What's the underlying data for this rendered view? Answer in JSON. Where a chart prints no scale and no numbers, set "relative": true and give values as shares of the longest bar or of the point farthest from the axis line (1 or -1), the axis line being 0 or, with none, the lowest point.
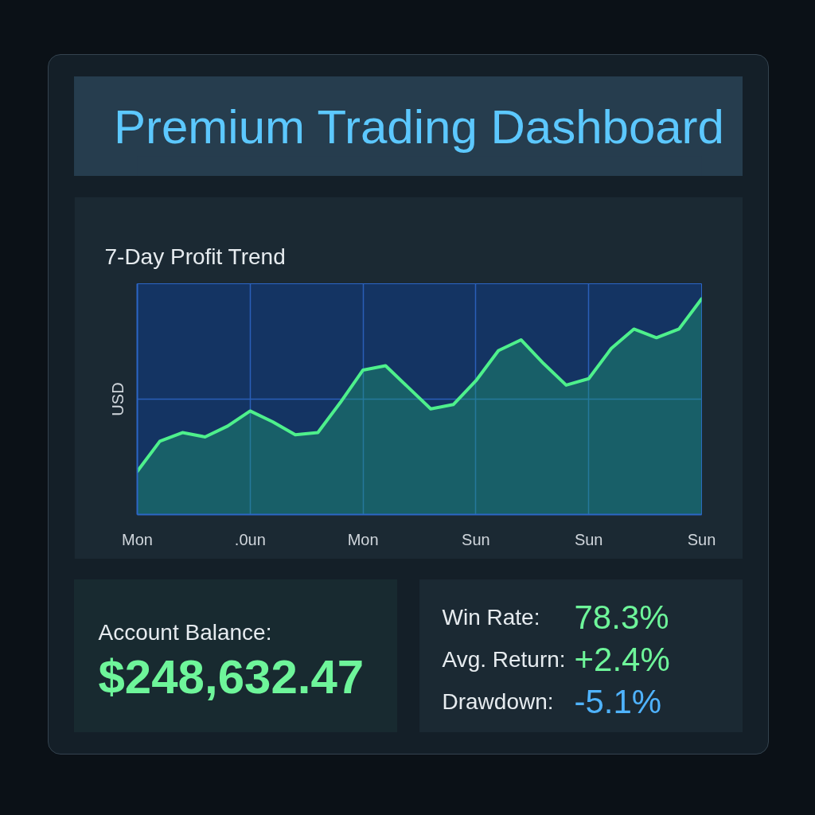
{
  "chart_data": [
    {
      "type": "area",
      "title": "Premium Trading Dashboard",
      "subtitle": "7-Day Profit Trend",
      "ylabel": "USD",
      "relative": true,
      "color": "#4ef08c",
      "grid": true,
      "categories": [
        "Mon",
        null,
        null,
        null,
        null,
        ".0un",
        null,
        null,
        null,
        null,
        "Mon",
        null,
        null,
        null,
        null,
        "Sun",
        null,
        null,
        null,
        null,
        "Sun",
        null,
        null,
        null,
        null,
        "Sun"
      ],
      "values": [
        0.2,
        0.34,
        0.38,
        0.36,
        0.41,
        0.48,
        0.43,
        0.37,
        0.38,
        0.52,
        0.67,
        0.69,
        0.59,
        0.49,
        0.51,
        0.62,
        0.76,
        0.81,
        0.7,
        0.6,
        0.63,
        0.77,
        0.86,
        0.82,
        0.86,
        1
      ]
    },
    {
      "type": "other",
      "annotations": [
        "Account Balance:",
        "$248,632.47"
      ]
    },
    {
      "type": "other",
      "annotations": [
        "Win Rate:",
        "78.3%",
        "Avg. Return:",
        "+2.4%",
        "Drawdown:",
        "-5.1%"
      ]
    }
  ]
}
